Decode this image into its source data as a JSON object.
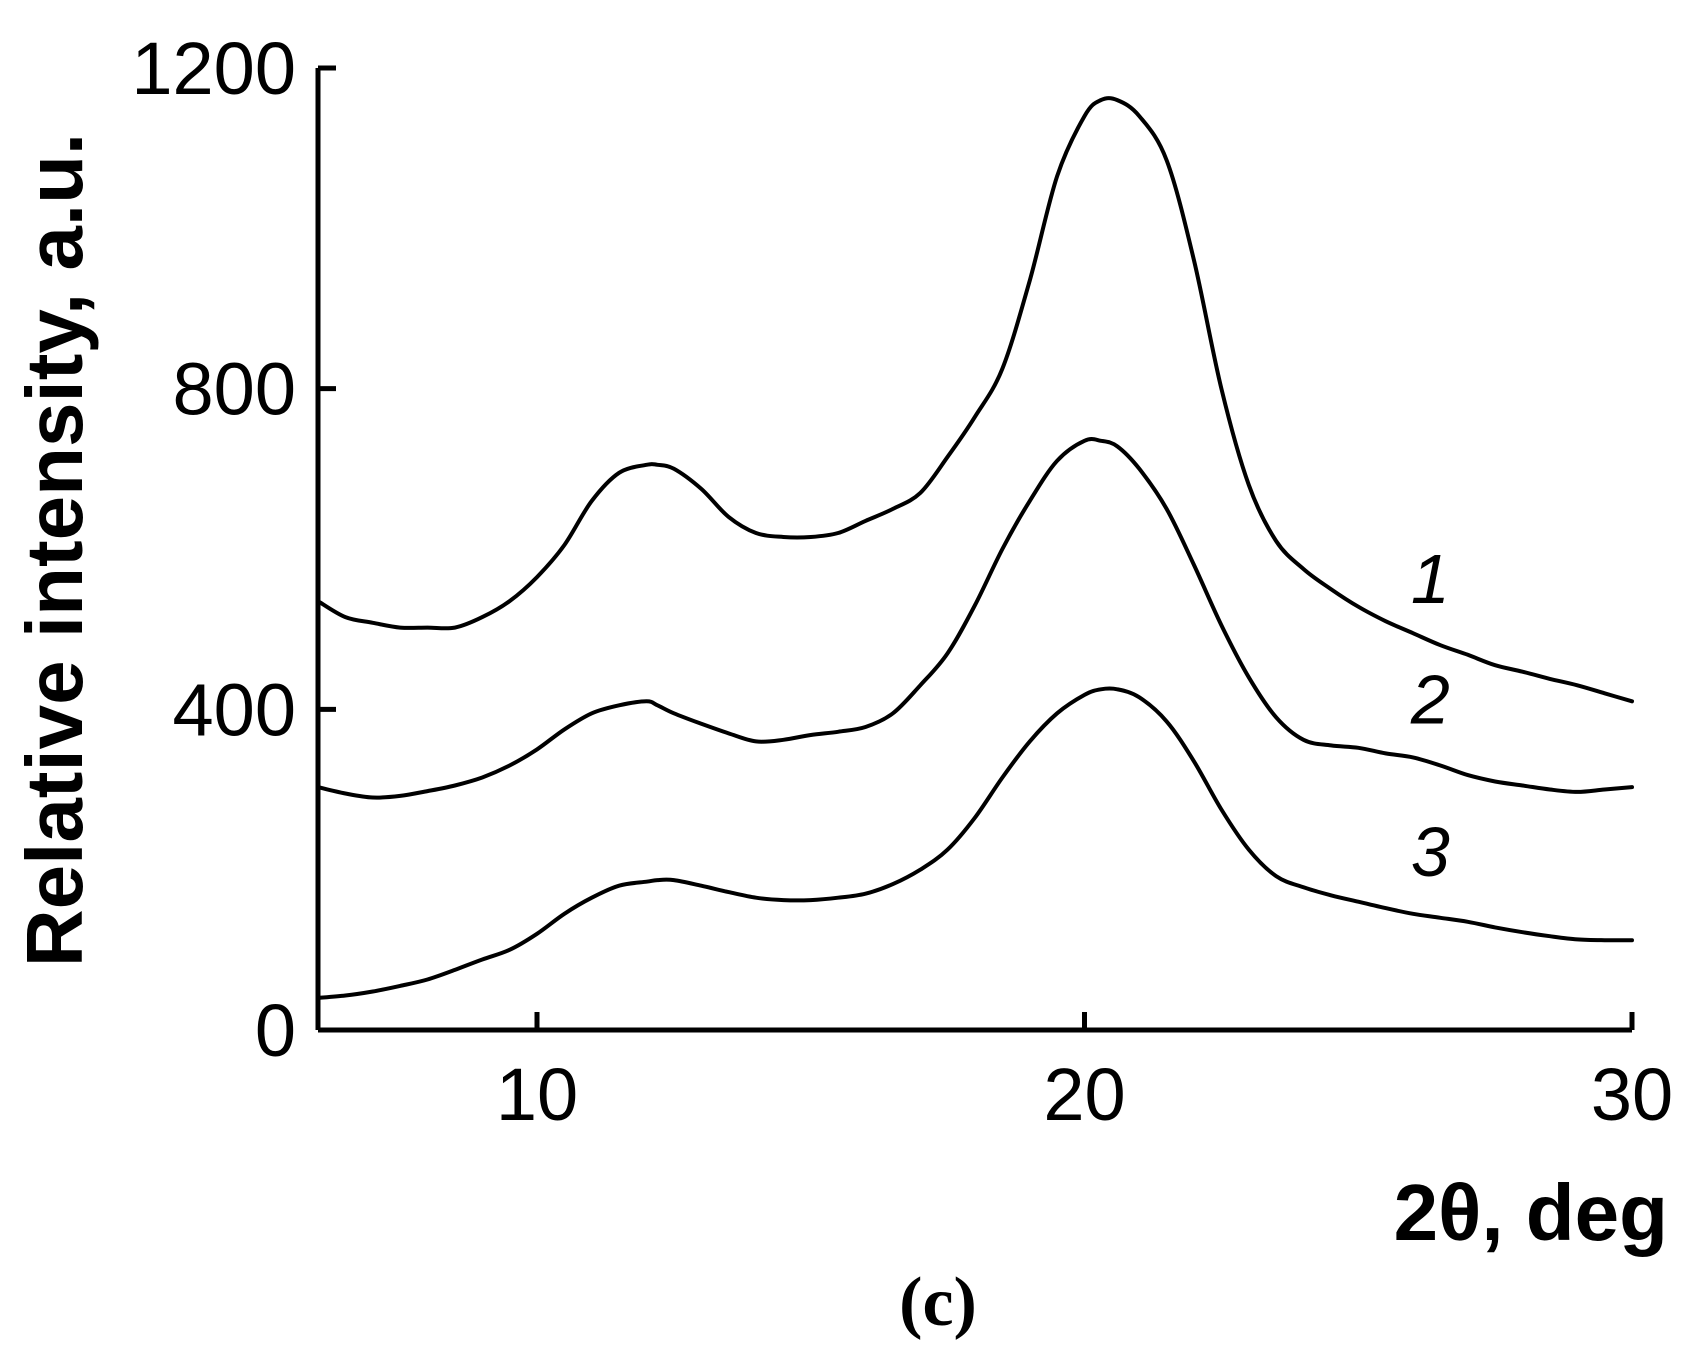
{
  "chart_data": {
    "type": "line",
    "title": "",
    "xlabel": "2θ, deg",
    "ylabel": "Relative intensity, a.u.",
    "xlim": [
      6,
      30
    ],
    "ylim": [
      0,
      1200
    ],
    "x_ticks": [
      10,
      20,
      30
    ],
    "y_ticks": [
      0,
      400,
      800,
      1200
    ],
    "grid": false,
    "panel_label": "(c)",
    "series": [
      {
        "name": "1",
        "x": [
          6.0,
          6.5,
          7.0,
          7.5,
          8.0,
          8.5,
          9.0,
          9.5,
          10.0,
          10.5,
          11.0,
          11.5,
          12.0,
          12.2,
          12.5,
          13.0,
          13.5,
          14.0,
          14.5,
          15.0,
          15.5,
          16.0,
          16.5,
          17.0,
          17.5,
          18.0,
          18.5,
          19.0,
          19.5,
          20.0,
          20.3,
          20.6,
          21.0,
          21.5,
          22.0,
          22.5,
          23.0,
          23.5,
          24.0,
          24.5,
          25.0,
          25.5,
          26.0,
          26.5,
          27.0,
          27.5,
          28.0,
          28.5,
          29.0,
          29.5,
          30.0
        ],
        "values": [
          535,
          515,
          508,
          502,
          502,
          502,
          515,
          535,
          565,
          605,
          660,
          695,
          705,
          705,
          700,
          675,
          640,
          620,
          615,
          615,
          620,
          635,
          650,
          670,
          715,
          765,
          825,
          935,
          1065,
          1140,
          1160,
          1160,
          1140,
          1085,
          960,
          800,
          680,
          610,
          575,
          550,
          528,
          510,
          495,
          480,
          468,
          455,
          447,
          438,
          430,
          420,
          410
        ]
      },
      {
        "name": "2",
        "x": [
          6.0,
          6.5,
          7.0,
          7.5,
          8.0,
          8.5,
          9.0,
          9.5,
          10.0,
          10.5,
          11.0,
          11.5,
          12.0,
          12.2,
          12.5,
          13.0,
          13.5,
          14.0,
          14.5,
          15.0,
          15.5,
          16.0,
          16.5,
          17.0,
          17.5,
          18.0,
          18.5,
          19.0,
          19.5,
          20.0,
          20.3,
          20.6,
          21.0,
          21.5,
          22.0,
          22.5,
          23.0,
          23.5,
          24.0,
          24.5,
          25.0,
          25.5,
          26.0,
          26.5,
          27.0,
          27.5,
          28.0,
          28.5,
          29.0,
          29.5,
          30.0
        ],
        "values": [
          303,
          295,
          290,
          292,
          298,
          305,
          315,
          330,
          350,
          375,
          395,
          405,
          410,
          405,
          395,
          382,
          370,
          360,
          362,
          368,
          372,
          378,
          395,
          430,
          470,
          530,
          600,
          660,
          710,
          735,
          735,
          728,
          700,
          650,
          580,
          505,
          440,
          390,
          362,
          355,
          352,
          345,
          340,
          330,
          318,
          310,
          305,
          300,
          297,
          300,
          303
        ]
      },
      {
        "name": "3",
        "x": [
          6.0,
          6.5,
          7.0,
          7.5,
          8.0,
          8.5,
          9.0,
          9.5,
          10.0,
          10.5,
          11.0,
          11.5,
          12.0,
          12.2,
          12.5,
          13.0,
          13.5,
          14.0,
          14.5,
          15.0,
          15.5,
          16.0,
          16.5,
          17.0,
          17.5,
          18.0,
          18.5,
          19.0,
          19.5,
          20.0,
          20.3,
          20.6,
          21.0,
          21.5,
          22.0,
          22.5,
          23.0,
          23.5,
          24.0,
          24.5,
          25.0,
          25.5,
          26.0,
          26.5,
          27.0,
          27.5,
          28.0,
          28.5,
          29.0,
          29.5,
          30.0
        ],
        "values": [
          40,
          43,
          48,
          55,
          63,
          75,
          88,
          100,
          120,
          145,
          165,
          180,
          185,
          187,
          187,
          180,
          172,
          165,
          162,
          162,
          165,
          170,
          182,
          200,
          225,
          265,
          315,
          360,
          395,
          418,
          425,
          425,
          415,
          385,
          335,
          275,
          225,
          192,
          178,
          168,
          160,
          152,
          145,
          140,
          135,
          128,
          122,
          117,
          113,
          112,
          112
        ]
      }
    ]
  }
}
